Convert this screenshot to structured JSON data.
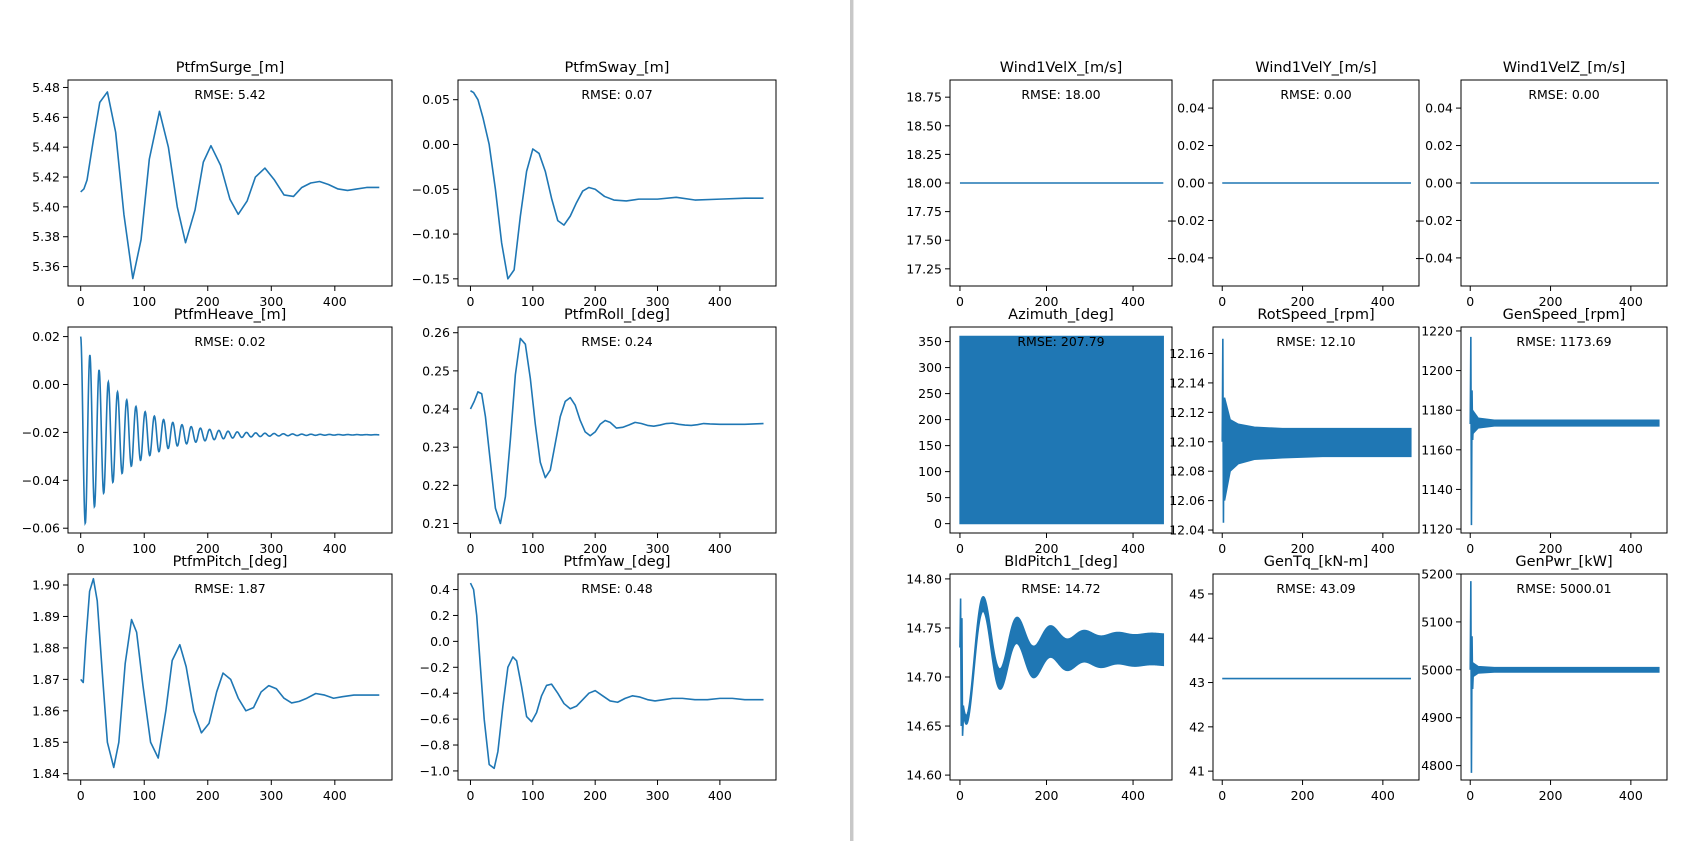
{
  "colors": {
    "line": "#1f77b4",
    "axes": "#000000",
    "background": "#ffffff"
  },
  "chart_data": [
    {
      "id": "ptfm_surge",
      "type": "line",
      "title": "PtfmSurge_[m]",
      "annotation": "RMSE: 5.42",
      "xlim": [
        -20,
        490
      ],
      "ylim": [
        5.347,
        5.485
      ],
      "xticks": [
        0,
        100,
        200,
        300,
        400
      ],
      "xtick_labels": [
        "0",
        "100",
        "200",
        "300",
        "400"
      ],
      "yticks": [
        5.36,
        5.38,
        5.4,
        5.42,
        5.44,
        5.46,
        5.48
      ],
      "ytick_labels": [
        "5.36",
        "5.38",
        "5.40",
        "5.42",
        "5.44",
        "5.46",
        "5.48"
      ],
      "x": [
        0,
        5,
        10,
        20,
        30,
        42,
        55,
        68,
        82,
        95,
        108,
        124,
        138,
        152,
        165,
        180,
        193,
        205,
        220,
        235,
        248,
        262,
        275,
        290,
        305,
        320,
        335,
        348,
        362,
        376,
        390,
        405,
        420,
        435,
        450,
        470
      ],
      "y": [
        5.41,
        5.412,
        5.418,
        5.445,
        5.47,
        5.477,
        5.45,
        5.395,
        5.352,
        5.378,
        5.432,
        5.464,
        5.44,
        5.4,
        5.376,
        5.398,
        5.43,
        5.441,
        5.428,
        5.405,
        5.395,
        5.404,
        5.42,
        5.426,
        5.418,
        5.408,
        5.407,
        5.413,
        5.416,
        5.417,
        5.415,
        5.412,
        5.411,
        5.412,
        5.413,
        5.413
      ]
    },
    {
      "id": "ptfm_sway",
      "type": "line",
      "title": "PtfmSway_[m]",
      "annotation": "RMSE: 0.07",
      "xlim": [
        -20,
        490
      ],
      "ylim": [
        -0.158,
        0.072
      ],
      "xticks": [
        0,
        100,
        200,
        300,
        400
      ],
      "xtick_labels": [
        "0",
        "100",
        "200",
        "300",
        "400"
      ],
      "yticks": [
        -0.15,
        -0.1,
        -0.05,
        0.0,
        0.05
      ],
      "ytick_labels": [
        "−0.15",
        "−0.10",
        "−0.05",
        "0.00",
        "0.05"
      ],
      "x": [
        0,
        5,
        12,
        20,
        30,
        40,
        50,
        60,
        70,
        80,
        90,
        100,
        110,
        120,
        130,
        140,
        150,
        160,
        170,
        180,
        190,
        200,
        215,
        230,
        250,
        270,
        300,
        330,
        360,
        400,
        440,
        470
      ],
      "y": [
        0.06,
        0.058,
        0.05,
        0.03,
        0.0,
        -0.05,
        -0.11,
        -0.15,
        -0.14,
        -0.08,
        -0.03,
        -0.005,
        -0.01,
        -0.03,
        -0.06,
        -0.085,
        -0.09,
        -0.08,
        -0.065,
        -0.052,
        -0.048,
        -0.05,
        -0.058,
        -0.062,
        -0.063,
        -0.061,
        -0.061,
        -0.059,
        -0.062,
        -0.061,
        -0.06,
        -0.06
      ]
    },
    {
      "id": "ptfm_heave",
      "type": "line",
      "title": "PtfmHeave_[m]",
      "annotation": "RMSE: 0.02",
      "xlim": [
        -20,
        490
      ],
      "ylim": [
        -0.062,
        0.024
      ],
      "xticks": [
        0,
        100,
        200,
        300,
        400
      ],
      "xtick_labels": [
        "0",
        "100",
        "200",
        "300",
        "400"
      ],
      "yticks": [
        -0.06,
        -0.04,
        -0.02,
        0.0,
        0.02
      ],
      "ytick_labels": [
        "−0.06",
        "−0.04",
        "−0.02",
        "0.00",
        "0.02"
      ],
      "signal": {
        "kind": "damped_sine",
        "offset": -0.021,
        "amplitude": 0.041,
        "period": 14.5,
        "decay": 70,
        "phase": 1.5708,
        "x_end": 470
      }
    },
    {
      "id": "ptfm_roll",
      "type": "line",
      "title": "PtfmRoll_[deg]",
      "annotation": "RMSE: 0.24",
      "xlim": [
        -20,
        490
      ],
      "ylim": [
        0.2075,
        0.2615
      ],
      "xticks": [
        0,
        100,
        200,
        300,
        400
      ],
      "xtick_labels": [
        "0",
        "100",
        "200",
        "300",
        "400"
      ],
      "yticks": [
        0.21,
        0.22,
        0.23,
        0.24,
        0.25,
        0.26
      ],
      "ytick_labels": [
        "0.21",
        "0.22",
        "0.23",
        "0.24",
        "0.25",
        "0.26"
      ],
      "x": [
        0,
        6,
        12,
        18,
        24,
        32,
        40,
        48,
        56,
        64,
        72,
        80,
        88,
        96,
        104,
        112,
        120,
        128,
        136,
        144,
        152,
        160,
        168,
        176,
        184,
        192,
        200,
        208,
        216,
        224,
        234,
        244,
        254,
        264,
        274,
        284,
        294,
        304,
        314,
        324,
        334,
        344,
        354,
        364,
        374,
        384,
        400,
        420,
        440,
        470
      ],
      "y": [
        0.24,
        0.242,
        0.2445,
        0.244,
        0.238,
        0.226,
        0.214,
        0.21,
        0.217,
        0.232,
        0.249,
        0.2585,
        0.257,
        0.248,
        0.236,
        0.226,
        0.222,
        0.224,
        0.231,
        0.238,
        0.242,
        0.243,
        0.241,
        0.237,
        0.234,
        0.233,
        0.234,
        0.236,
        0.237,
        0.2365,
        0.235,
        0.2352,
        0.2358,
        0.2365,
        0.2362,
        0.2357,
        0.2355,
        0.2358,
        0.2362,
        0.2363,
        0.236,
        0.2358,
        0.2357,
        0.2359,
        0.2362,
        0.2361,
        0.236,
        0.236,
        0.236,
        0.2362
      ]
    },
    {
      "id": "ptfm_pitch",
      "type": "line",
      "title": "PtfmPitch_[deg]",
      "annotation": "RMSE: 1.87",
      "xlim": [
        -20,
        490
      ],
      "ylim": [
        1.838,
        1.9035
      ],
      "xticks": [
        0,
        100,
        200,
        300,
        400
      ],
      "xtick_labels": [
        "0",
        "100",
        "200",
        "300",
        "400"
      ],
      "yticks": [
        1.84,
        1.85,
        1.86,
        1.87,
        1.88,
        1.89,
        1.9
      ],
      "ytick_labels": [
        "1.84",
        "1.85",
        "1.86",
        "1.87",
        "1.88",
        "1.89",
        "1.90"
      ],
      "x": [
        0,
        4,
        8,
        14,
        20,
        26,
        34,
        42,
        52,
        60,
        70,
        80,
        88,
        98,
        110,
        122,
        134,
        144,
        156,
        166,
        178,
        190,
        202,
        214,
        224,
        236,
        248,
        260,
        272,
        284,
        296,
        308,
        320,
        332,
        344,
        356,
        370,
        384,
        398,
        412,
        430,
        450,
        470
      ],
      "y": [
        1.87,
        1.869,
        1.882,
        1.898,
        1.902,
        1.895,
        1.872,
        1.85,
        1.842,
        1.85,
        1.875,
        1.889,
        1.885,
        1.868,
        1.85,
        1.845,
        1.86,
        1.876,
        1.881,
        1.874,
        1.86,
        1.853,
        1.856,
        1.866,
        1.872,
        1.87,
        1.864,
        1.86,
        1.861,
        1.866,
        1.868,
        1.867,
        1.864,
        1.8625,
        1.863,
        1.864,
        1.8655,
        1.865,
        1.864,
        1.8645,
        1.865,
        1.865,
        1.865
      ]
    },
    {
      "id": "ptfm_yaw",
      "type": "line",
      "title": "PtfmYaw_[deg]",
      "annotation": "RMSE: 0.48",
      "xlim": [
        -20,
        490
      ],
      "ylim": [
        -1.07,
        0.52
      ],
      "xticks": [
        0,
        100,
        200,
        300,
        400
      ],
      "xtick_labels": [
        "0",
        "100",
        "200",
        "300",
        "400"
      ],
      "yticks": [
        -1.0,
        -0.8,
        -0.6,
        -0.4,
        -0.2,
        0.0,
        0.2,
        0.4
      ],
      "ytick_labels": [
        "−1.0",
        "−0.8",
        "−0.6",
        "−0.4",
        "−0.2",
        "0.0",
        "0.2",
        "0.4"
      ],
      "x": [
        0,
        5,
        10,
        16,
        22,
        30,
        38,
        44,
        52,
        60,
        68,
        74,
        82,
        90,
        98,
        106,
        114,
        122,
        130,
        140,
        150,
        160,
        170,
        180,
        190,
        200,
        212,
        224,
        236,
        248,
        260,
        272,
        284,
        296,
        310,
        324,
        340,
        360,
        380,
        400,
        420,
        440,
        470
      ],
      "y": [
        0.45,
        0.4,
        0.2,
        -0.2,
        -0.6,
        -0.95,
        -0.98,
        -0.85,
        -0.5,
        -0.2,
        -0.12,
        -0.15,
        -0.35,
        -0.58,
        -0.62,
        -0.55,
        -0.42,
        -0.34,
        -0.33,
        -0.4,
        -0.48,
        -0.52,
        -0.5,
        -0.45,
        -0.4,
        -0.38,
        -0.42,
        -0.46,
        -0.47,
        -0.44,
        -0.42,
        -0.43,
        -0.45,
        -0.46,
        -0.45,
        -0.44,
        -0.44,
        -0.45,
        -0.45,
        -0.44,
        -0.44,
        -0.45,
        -0.45
      ]
    },
    {
      "id": "wind1_vel_x",
      "type": "line",
      "title": "Wind1VelX_[m/s]",
      "annotation": "RMSE: 18.00",
      "xlim": [
        -23,
        490
      ],
      "ylim": [
        17.1,
        18.9
      ],
      "xticks": [
        0,
        200,
        400
      ],
      "xtick_labels": [
        "0",
        "200",
        "400"
      ],
      "yticks": [
        17.25,
        17.5,
        17.75,
        18.0,
        18.25,
        18.5,
        18.75
      ],
      "ytick_labels": [
        "17.25",
        "17.50",
        "17.75",
        "18.00",
        "18.25",
        "18.50",
        "18.75"
      ],
      "x": [
        0,
        470
      ],
      "y": [
        18.0,
        18.0
      ]
    },
    {
      "id": "wind1_vel_y",
      "type": "line",
      "title": "Wind1VelY_[m/s]",
      "annotation": "RMSE: 0.00",
      "xlim": [
        -23,
        490
      ],
      "ylim": [
        -0.055,
        0.055
      ],
      "xticks": [
        0,
        200,
        400
      ],
      "xtick_labels": [
        "0",
        "200",
        "400"
      ],
      "yticks": [
        -0.04,
        -0.02,
        0.0,
        0.02,
        0.04
      ],
      "ytick_labels": [
        "−0.04",
        "−0.02",
        "0.00",
        "0.02",
        "0.04"
      ],
      "x": [
        0,
        470
      ],
      "y": [
        0.0,
        0.0
      ]
    },
    {
      "id": "wind1_vel_z",
      "type": "line",
      "title": "Wind1VelZ_[m/s]",
      "annotation": "RMSE: 0.00",
      "xlim": [
        -23,
        490
      ],
      "ylim": [
        -0.055,
        0.055
      ],
      "xticks": [
        0,
        200,
        400
      ],
      "xtick_labels": [
        "0",
        "200",
        "400"
      ],
      "yticks": [
        -0.04,
        -0.02,
        0.0,
        0.02,
        0.04
      ],
      "ytick_labels": [
        "−0.04",
        "−0.02",
        "0.00",
        "0.02",
        "0.04"
      ],
      "x": [
        0,
        470
      ],
      "y": [
        0.0,
        0.0
      ]
    },
    {
      "id": "azimuth",
      "type": "area",
      "title": "Azimuth_[deg]",
      "annotation": "RMSE: 207.79",
      "xlim": [
        -23,
        490
      ],
      "ylim": [
        -18,
        378
      ],
      "xticks": [
        0,
        200,
        400
      ],
      "xtick_labels": [
        "0",
        "200",
        "400"
      ],
      "yticks": [
        0,
        50,
        100,
        150,
        200,
        250,
        300,
        350
      ],
      "ytick_labels": [
        "0",
        "50",
        "100",
        "150",
        "200",
        "250",
        "300",
        "350"
      ],
      "band": {
        "x": [
          0,
          470
        ],
        "lower": [
          0,
          0
        ],
        "upper": [
          360,
          360
        ]
      }
    },
    {
      "id": "rot_speed",
      "type": "area",
      "title": "RotSpeed_[rpm]",
      "annotation": "RMSE: 12.10",
      "xlim": [
        -23,
        490
      ],
      "ylim": [
        12.038,
        12.178
      ],
      "xticks": [
        0,
        200,
        400
      ],
      "xtick_labels": [
        "0",
        "200",
        "400"
      ],
      "yticks": [
        12.04,
        12.06,
        12.08,
        12.1,
        12.12,
        12.14,
        12.16
      ],
      "ytick_labels": [
        "12.04",
        "12.06",
        "12.08",
        "12.10",
        "12.12",
        "12.14",
        "12.16"
      ],
      "spike": {
        "x": [
          0,
          1.5,
          3,
          4.5,
          6,
          8
        ],
        "y": [
          12.1,
          12.17,
          12.045,
          12.13,
          12.08,
          12.1
        ]
      },
      "band": {
        "x": [
          6,
          20,
          40,
          80,
          150,
          250,
          350,
          470
        ],
        "lower": [
          12.06,
          12.08,
          12.085,
          12.088,
          12.089,
          12.09,
          12.09,
          12.09
        ],
        "upper": [
          12.13,
          12.115,
          12.112,
          12.11,
          12.109,
          12.109,
          12.109,
          12.109
        ]
      }
    },
    {
      "id": "gen_speed",
      "type": "area",
      "title": "GenSpeed_[rpm]",
      "annotation": "RMSE: 1173.69",
      "xlim": [
        -23,
        490
      ],
      "ylim": [
        1118,
        1222
      ],
      "xticks": [
        0,
        200,
        400
      ],
      "xtick_labels": [
        "0",
        "200",
        "400"
      ],
      "yticks": [
        1120,
        1140,
        1160,
        1180,
        1200,
        1220
      ],
      "ytick_labels": [
        "1120",
        "1140",
        "1160",
        "1180",
        "1200",
        "1220"
      ],
      "spike": {
        "x": [
          0,
          1.5,
          3,
          4.5,
          6,
          8
        ],
        "y": [
          1173,
          1217,
          1122,
          1190,
          1165,
          1174
        ]
      },
      "band": {
        "x": [
          6,
          20,
          60,
          470
        ],
        "lower": [
          1168,
          1171,
          1172,
          1172
        ],
        "upper": [
          1180,
          1176,
          1175,
          1175
        ]
      }
    },
    {
      "id": "bld_pitch1",
      "type": "line",
      "title": "BldPitch1_[deg]",
      "annotation": "RMSE: 14.72",
      "xlim": [
        -23,
        490
      ],
      "ylim": [
        14.595,
        14.805
      ],
      "xticks": [
        0,
        200,
        400
      ],
      "xtick_labels": [
        "0",
        "200",
        "400"
      ],
      "yticks": [
        14.6,
        14.65,
        14.7,
        14.75,
        14.8
      ],
      "ytick_labels": [
        "14.60",
        "14.65",
        "14.70",
        "14.75",
        "14.80"
      ],
      "signal": {
        "kind": "damped_sine_band",
        "offset": 14.728,
        "amplitude": 0.085,
        "period": 78,
        "decay": 90,
        "phase": 3.4,
        "x_start": 8,
        "x_end": 470,
        "band_start": 8,
        "band_end": 0.016
      },
      "spike": {
        "x": [
          0,
          1.5,
          3,
          4.5,
          6,
          8
        ],
        "y": [
          14.73,
          14.78,
          14.65,
          14.76,
          14.64,
          14.66
        ]
      }
    },
    {
      "id": "gen_tq",
      "type": "line",
      "title": "GenTq_[kN-m]",
      "annotation": "RMSE: 43.09",
      "xlim": [
        -23,
        490
      ],
      "ylim": [
        40.8,
        45.45
      ],
      "xticks": [
        0,
        200,
        400
      ],
      "xtick_labels": [
        "0",
        "200",
        "400"
      ],
      "yticks": [
        41,
        42,
        43,
        44,
        45
      ],
      "ytick_labels": [
        "41",
        "42",
        "43",
        "44",
        "45"
      ],
      "x": [
        0,
        470
      ],
      "y": [
        43.09,
        43.09
      ]
    },
    {
      "id": "gen_pwr",
      "type": "area",
      "title": "GenPwr_[kW]",
      "annotation": "RMSE: 5000.01",
      "xlim": [
        -23,
        490
      ],
      "ylim": [
        4770,
        5200
      ],
      "xticks": [
        0,
        200,
        400
      ],
      "xtick_labels": [
        "0",
        "200",
        "400"
      ],
      "yticks": [
        4800,
        4900,
        5000,
        5100,
        5200
      ],
      "ytick_labels": [
        "4800",
        "4900",
        "5000",
        "5100",
        "5200"
      ],
      "spike": {
        "x": [
          0,
          1.5,
          3,
          4.5,
          6,
          8
        ],
        "y": [
          5000,
          5185,
          4785,
          5070,
          4960,
          5002
        ]
      },
      "band": {
        "x": [
          6,
          20,
          60,
          470
        ],
        "lower": [
          4985,
          4993,
          4995,
          4995
        ],
        "upper": [
          5015,
          5007,
          5005,
          5005
        ]
      }
    }
  ]
}
